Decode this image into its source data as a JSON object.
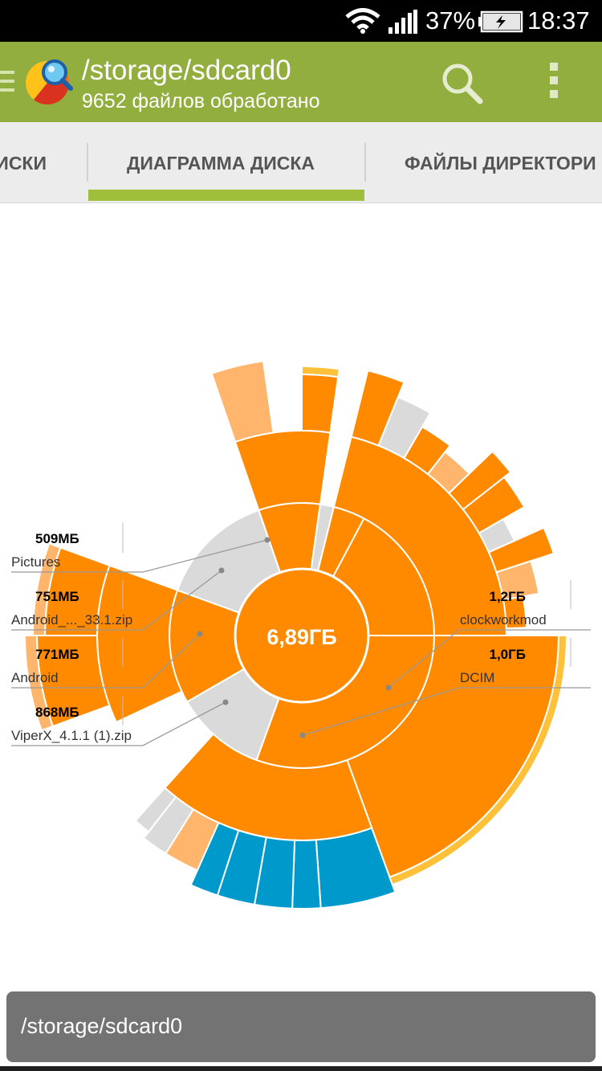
{
  "status_bar": {
    "battery_percent": "37%",
    "time": "18:37",
    "icons": [
      "wifi-icon",
      "signal-icon",
      "battery-charging-icon"
    ]
  },
  "action_bar": {
    "title": "/storage/sdcard0",
    "subtitle": "9652 файлов обработано",
    "icons": [
      "drawer-icon",
      "app-logo-icon",
      "search-icon",
      "overflow-menu-icon"
    ]
  },
  "tabs": [
    {
      "label": "ИСКИ"
    },
    {
      "label": "ДИАГРАММА ДИСКА",
      "selected": true
    },
    {
      "label": "ФАЙЛЫ ДИРЕКТОРИ"
    }
  ],
  "chart_data": {
    "type": "sunburst",
    "center_label": "6,89ГБ",
    "labels": [
      {
        "name": "Pictures",
        "size": "509МБ"
      },
      {
        "name": "Android_..._33.1.zip",
        "size": "751МБ"
      },
      {
        "name": "Android",
        "size": "771МБ"
      },
      {
        "name": "ViperX_4.1.1 (1).zip",
        "size": "868МБ"
      },
      {
        "name": "clockworkmod",
        "size": "1,2ГБ"
      },
      {
        "name": "DCIM",
        "size": "1,0ГБ"
      }
    ],
    "colors": {
      "folder": "#ff8a00",
      "light": "#ffb56b",
      "file": "#dadada",
      "media": "#0099cc",
      "rim": "#ffc13a"
    }
  },
  "path_bar": {
    "text": "/storage/sdcard0"
  }
}
